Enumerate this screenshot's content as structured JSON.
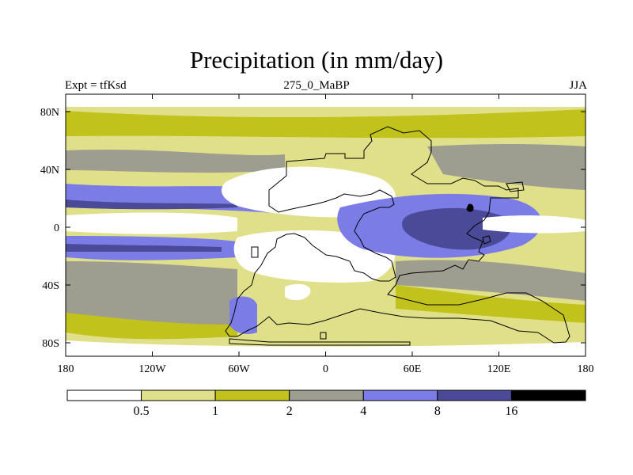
{
  "title": "Precipitation (in mm/day)",
  "subtitle_left": "Expt = tfKsd",
  "subtitle_center": "275_0_MaBP",
  "subtitle_right": "JJA",
  "y_ticks": [
    "80N",
    "40N",
    "0",
    "40S",
    "80S"
  ],
  "x_ticks": [
    "180",
    "120W",
    "60W",
    "0",
    "60E",
    "120E",
    "180"
  ],
  "colorbar": {
    "colors": [
      "#ffffff",
      "#e1e08a",
      "#c2c21c",
      "#9d9d90",
      "#7b7ce6",
      "#4a4a98",
      "#000000"
    ],
    "labels": [
      "0.5",
      "1",
      "2",
      "4",
      "8",
      "16"
    ]
  },
  "palette": {
    "c0": "#ffffff",
    "c1": "#e1e08a",
    "c2": "#c2c21c",
    "c3": "#9d9d90",
    "c4": "#7b7ce6",
    "c5": "#4a4a98",
    "c6": "#000000"
  }
}
